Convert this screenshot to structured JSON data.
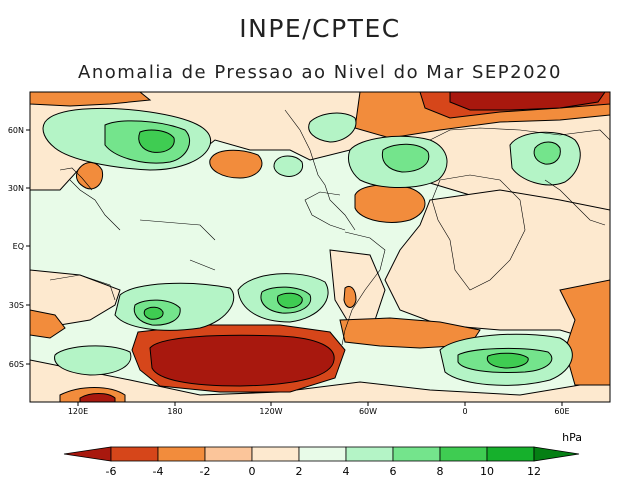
{
  "header": {
    "org": "INPE/CPTEC",
    "subtitle": "Anomalia de Pressao ao Nivel do Mar SEP2020"
  },
  "map": {
    "lat_labels": [
      "60N",
      "30N",
      "EQ",
      "30S",
      "60S"
    ],
    "lon_labels": [
      "120E",
      "180",
      "120W",
      "60W",
      "0",
      "60E"
    ]
  },
  "legend": {
    "unit": "hPa",
    "ticks": [
      "-6",
      "-4",
      "-2",
      "0",
      "2",
      "4",
      "6",
      "8",
      "10",
      "12"
    ],
    "colors": [
      "#a8180e",
      "#d6461a",
      "#f28c3c",
      "#fbc59a",
      "#fde9cf",
      "#e8fbe8",
      "#b4f4c6",
      "#74e48c",
      "#3fcc52",
      "#16b02c",
      "#09901c",
      "#057f14"
    ]
  }
}
